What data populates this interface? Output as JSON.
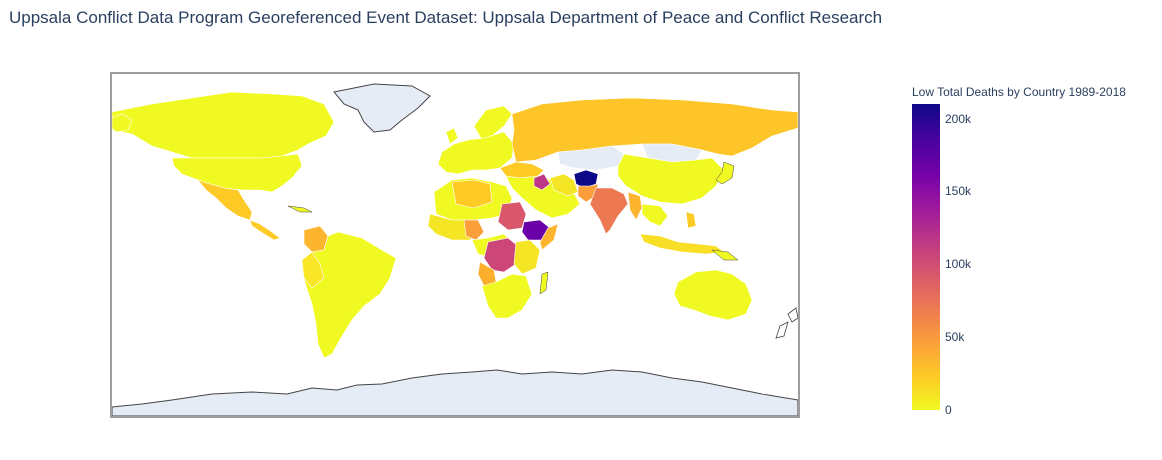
{
  "title": "Uppsala Conflict Data Program Georeferenced Event Dataset: Uppsala Department of Peace and Conflict Research",
  "colorbar": {
    "title": "Low Total Deaths by Country 1989-2018",
    "ticks": [
      {
        "label": "200k",
        "value": 200000
      },
      {
        "label": "150k",
        "value": 150000
      },
      {
        "label": "100k",
        "value": 100000
      },
      {
        "label": "50k",
        "value": 50000
      },
      {
        "label": "0",
        "value": 0
      }
    ],
    "min": 0,
    "max": 210000,
    "colorscale": [
      "#f0f921",
      "#fdca26",
      "#fb9f3a",
      "#ed7953",
      "#d8576b",
      "#bd3786",
      "#9c179e",
      "#7201a8",
      "#46039f",
      "#0d0887"
    ]
  },
  "map": {
    "projection": "equirectangular",
    "land_no_data_color": "#e5ecf6",
    "ocean_color": "#ffffff",
    "border_color": "#ffffff",
    "coast_color": "#444444",
    "frame_color": "#9e9e9e"
  }
}
